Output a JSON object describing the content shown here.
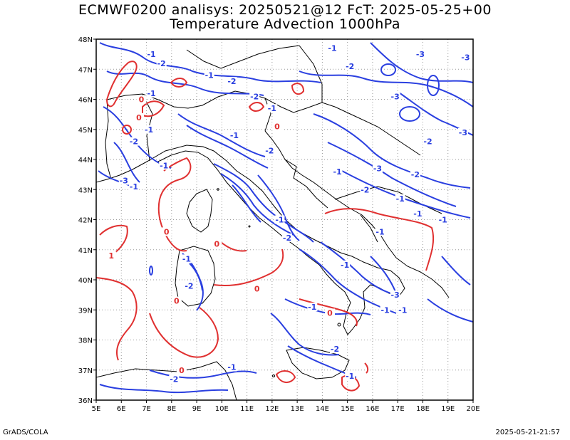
{
  "title_line1": "ECMWF0200 analisys: 20250521@12 FcT: 2025-05-25+00",
  "title_line2": "Temperature Advection 1000hPa",
  "footer_left": "GrADS/COLA",
  "footer_right": "2025-05-21-21:57",
  "map": {
    "lon_range": [
      5,
      20
    ],
    "lat_range": [
      36,
      48
    ],
    "x_tick_labels": [
      "5E",
      "6E",
      "7E",
      "8E",
      "9E",
      "10E",
      "11E",
      "12E",
      "13E",
      "14E",
      "15E",
      "16E",
      "17E",
      "18E",
      "19E",
      "20E"
    ],
    "y_tick_labels": [
      "36N",
      "37N",
      "38N",
      "39N",
      "40N",
      "41N",
      "42N",
      "43N",
      "44N",
      "45N",
      "46N",
      "47N",
      "48N"
    ],
    "grid": "dotted",
    "colors": {
      "positive": "#e03030",
      "negative": "#2a3fe0",
      "coast": "#000000"
    },
    "contour_labels": [
      {
        "text": "-1",
        "lon": 7.2,
        "lat": 47.5,
        "sign": "neg"
      },
      {
        "text": "-2",
        "lon": 7.6,
        "lat": 47.2,
        "sign": "neg"
      },
      {
        "text": "-1",
        "lon": 9.5,
        "lat": 46.8,
        "sign": "neg"
      },
      {
        "text": "-2",
        "lon": 10.4,
        "lat": 46.6,
        "sign": "neg"
      },
      {
        "text": "-1",
        "lon": 14.4,
        "lat": 47.7,
        "sign": "neg"
      },
      {
        "text": "-2",
        "lon": 15.1,
        "lat": 47.1,
        "sign": "neg"
      },
      {
        "text": "-3",
        "lon": 17.9,
        "lat": 47.5,
        "sign": "neg"
      },
      {
        "text": "-3",
        "lon": 19.7,
        "lat": 47.4,
        "sign": "neg"
      },
      {
        "text": "-3",
        "lon": 16.9,
        "lat": 46.1,
        "sign": "neg"
      },
      {
        "text": "-3",
        "lon": 19.6,
        "lat": 44.9,
        "sign": "neg"
      },
      {
        "text": "-2",
        "lon": 18.2,
        "lat": 44.6,
        "sign": "neg"
      },
      {
        "text": "-1",
        "lon": 7.2,
        "lat": 46.2,
        "sign": "neg"
      },
      {
        "text": "-2",
        "lon": 11.3,
        "lat": 46.1,
        "sign": "neg"
      },
      {
        "text": "-1",
        "lon": 12.0,
        "lat": 45.7,
        "sign": "neg"
      },
      {
        "text": "-1",
        "lon": 7.1,
        "lat": 45.0,
        "sign": "neg"
      },
      {
        "text": "-2",
        "lon": 6.5,
        "lat": 44.6,
        "sign": "neg"
      },
      {
        "text": "-1",
        "lon": 10.5,
        "lat": 44.8,
        "sign": "neg"
      },
      {
        "text": "-2",
        "lon": 11.9,
        "lat": 44.3,
        "sign": "neg"
      },
      {
        "text": "-3",
        "lon": 6.1,
        "lat": 43.3,
        "sign": "neg"
      },
      {
        "text": "-1",
        "lon": 7.7,
        "lat": 43.8,
        "sign": "neg"
      },
      {
        "text": "-1",
        "lon": 6.5,
        "lat": 43.1,
        "sign": "neg"
      },
      {
        "text": "-3",
        "lon": 16.2,
        "lat": 43.7,
        "sign": "neg"
      },
      {
        "text": "-2",
        "lon": 17.7,
        "lat": 43.5,
        "sign": "neg"
      },
      {
        "text": "-2",
        "lon": 15.7,
        "lat": 43.0,
        "sign": "neg"
      },
      {
        "text": "-1",
        "lon": 14.6,
        "lat": 43.6,
        "sign": "neg"
      },
      {
        "text": "-1",
        "lon": 17.1,
        "lat": 42.7,
        "sign": "neg"
      },
      {
        "text": "-1",
        "lon": 17.8,
        "lat": 42.2,
        "sign": "neg"
      },
      {
        "text": "-1",
        "lon": 18.8,
        "lat": 42.0,
        "sign": "neg"
      },
      {
        "text": "-1",
        "lon": 12.3,
        "lat": 42.0,
        "sign": "neg"
      },
      {
        "text": "-2",
        "lon": 12.6,
        "lat": 41.4,
        "sign": "neg"
      },
      {
        "text": "-1",
        "lon": 16.3,
        "lat": 41.6,
        "sign": "neg"
      },
      {
        "text": "-1",
        "lon": 14.9,
        "lat": 40.5,
        "sign": "neg"
      },
      {
        "text": "-1",
        "lon": 8.6,
        "lat": 40.7,
        "sign": "neg"
      },
      {
        "text": "-2",
        "lon": 8.7,
        "lat": 39.8,
        "sign": "neg"
      },
      {
        "text": "-1",
        "lon": 13.6,
        "lat": 39.1,
        "sign": "neg"
      },
      {
        "text": "-3",
        "lon": 16.9,
        "lat": 39.5,
        "sign": "neg"
      },
      {
        "text": "-1",
        "lon": 16.5,
        "lat": 39.0,
        "sign": "neg"
      },
      {
        "text": "-1",
        "lon": 17.2,
        "lat": 39.0,
        "sign": "neg"
      },
      {
        "text": "-2",
        "lon": 14.5,
        "lat": 37.7,
        "sign": "neg"
      },
      {
        "text": "-1",
        "lon": 10.4,
        "lat": 37.1,
        "sign": "neg"
      },
      {
        "text": "-2",
        "lon": 8.1,
        "lat": 36.7,
        "sign": "neg"
      },
      {
        "text": "-1",
        "lon": 15.1,
        "lat": 36.8,
        "sign": "neg"
      },
      {
        "text": "0",
        "lon": 6.8,
        "lat": 46.0,
        "sign": "pos"
      },
      {
        "text": "0",
        "lon": 6.7,
        "lat": 45.4,
        "sign": "pos"
      },
      {
        "text": "0",
        "lon": 12.2,
        "lat": 45.1,
        "sign": "pos"
      },
      {
        "text": "0",
        "lon": 7.8,
        "lat": 41.6,
        "sign": "pos"
      },
      {
        "text": "0",
        "lon": 9.8,
        "lat": 41.2,
        "sign": "pos"
      },
      {
        "text": "1",
        "lon": 5.6,
        "lat": 40.8,
        "sign": "pos"
      },
      {
        "text": "0",
        "lon": 8.2,
        "lat": 39.3,
        "sign": "pos"
      },
      {
        "text": "0",
        "lon": 11.4,
        "lat": 39.7,
        "sign": "pos"
      },
      {
        "text": "0",
        "lon": 14.3,
        "lat": 38.9,
        "sign": "pos"
      },
      {
        "text": "0",
        "lon": 8.4,
        "lat": 37.0,
        "sign": "pos"
      }
    ]
  }
}
